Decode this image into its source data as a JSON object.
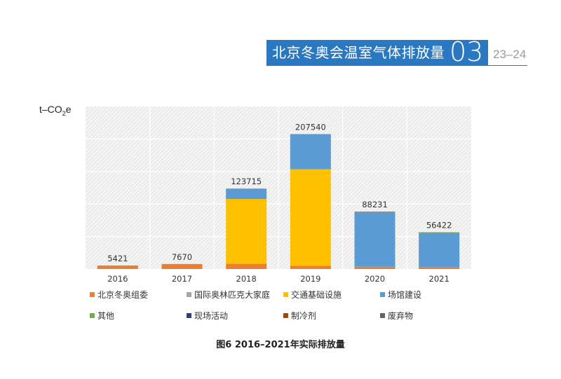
{
  "header": {
    "title": "北京冬奥会温室气体排放量",
    "section_number": "03",
    "pages": "23–24",
    "accent_color": "#2b78c2"
  },
  "caption": "图6 2016–2021年实际排放量",
  "chart_data": {
    "type": "bar",
    "stacked": true,
    "unit_label": {
      "prefix": "t–CO",
      "sub": "2",
      "suffix": "e"
    },
    "categories": [
      "2016",
      "2017",
      "2018",
      "2019",
      "2020",
      "2021"
    ],
    "totals": [
      5421,
      7670,
      123715,
      207540,
      88231,
      56422
    ],
    "total_labels": [
      "5421",
      "7670",
      "123715",
      "207540",
      "88231",
      "56422"
    ],
    "ylim": [
      0,
      250000
    ],
    "grid": true,
    "series": [
      {
        "name": "北京冬奥组委",
        "color": "#ed7d31",
        "values": [
          5421,
          7670,
          8000,
          5000,
          3500,
          3000
        ]
      },
      {
        "name": "国际奥林匹克大家庭",
        "color": "#a5a5a5",
        "values": [
          0,
          0,
          0,
          0,
          0,
          0
        ]
      },
      {
        "name": "交通基础设施",
        "color": "#ffc000",
        "values": [
          0,
          0,
          99715,
          148540,
          0,
          0
        ]
      },
      {
        "name": "场馆建设",
        "color": "#5b9bd5",
        "values": [
          0,
          0,
          16000,
          54000,
          83731,
          52422
        ]
      },
      {
        "name": "其他",
        "color": "#70ad47",
        "values": [
          0,
          0,
          0,
          0,
          300,
          600
        ]
      },
      {
        "name": "现场活动",
        "color": "#264478",
        "values": [
          0,
          0,
          0,
          0,
          0,
          0
        ]
      },
      {
        "name": "制冷剂",
        "color": "#9e480e",
        "values": [
          0,
          0,
          0,
          0,
          0,
          0
        ]
      },
      {
        "name": "废弃物",
        "color": "#636363",
        "values": [
          0,
          0,
          0,
          0,
          700,
          400
        ]
      }
    ]
  }
}
